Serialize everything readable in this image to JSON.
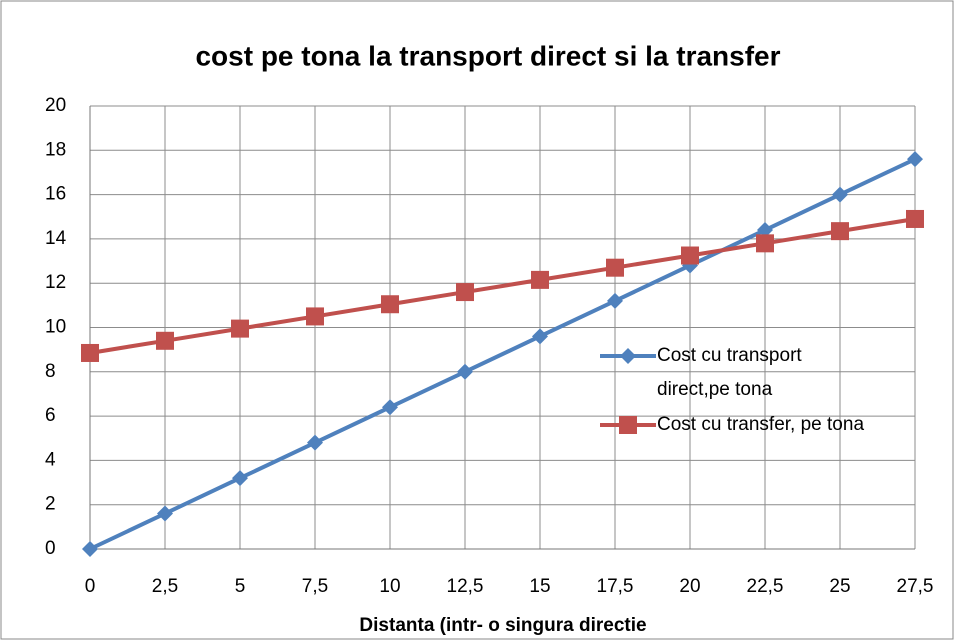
{
  "chart_data": {
    "type": "line",
    "title": "cost pe tona  la transport direct si la transfer",
    "x_label": "Distanta (intr- o singura directie",
    "x": [
      0,
      2.5,
      5,
      7.5,
      10,
      12.5,
      15,
      17.5,
      20,
      22.5,
      25,
      27.5
    ],
    "series": [
      {
        "name": "Cost cu transport direct,pe tona",
        "color": "#4f81bd",
        "marker": "diamond",
        "values": [
          0,
          1.6,
          3.2,
          4.8,
          6.4,
          8,
          9.6,
          11.2,
          12.8,
          14.4,
          16,
          17.6
        ]
      },
      {
        "name": "Cost cu transfer, pe tona",
        "color": "#c0504d",
        "marker": "square",
        "values": [
          8.85,
          9.4,
          9.95,
          10.5,
          11.05,
          11.6,
          12.15,
          12.7,
          13.25,
          13.8,
          14.35,
          14.9
        ]
      }
    ],
    "xlim": [
      0,
      27.5
    ],
    "xticks": [
      0,
      {
        "value": 2.5,
        "label": "2,5"
      },
      5,
      {
        "value": 7.5,
        "label": "7,5"
      },
      10,
      {
        "value": 12.5,
        "label": "12,5"
      },
      15,
      {
        "value": 17.5,
        "label": "17,5"
      },
      20,
      {
        "value": 22.5,
        "label": "22,5"
      },
      25,
      {
        "value": 27.5,
        "label": "27,5"
      }
    ],
    "ylim": [
      0,
      20
    ],
    "yticks": [
      0,
      2,
      4,
      6,
      8,
      10,
      12,
      14,
      16,
      18,
      20
    ],
    "grid": true,
    "legend": "right"
  }
}
